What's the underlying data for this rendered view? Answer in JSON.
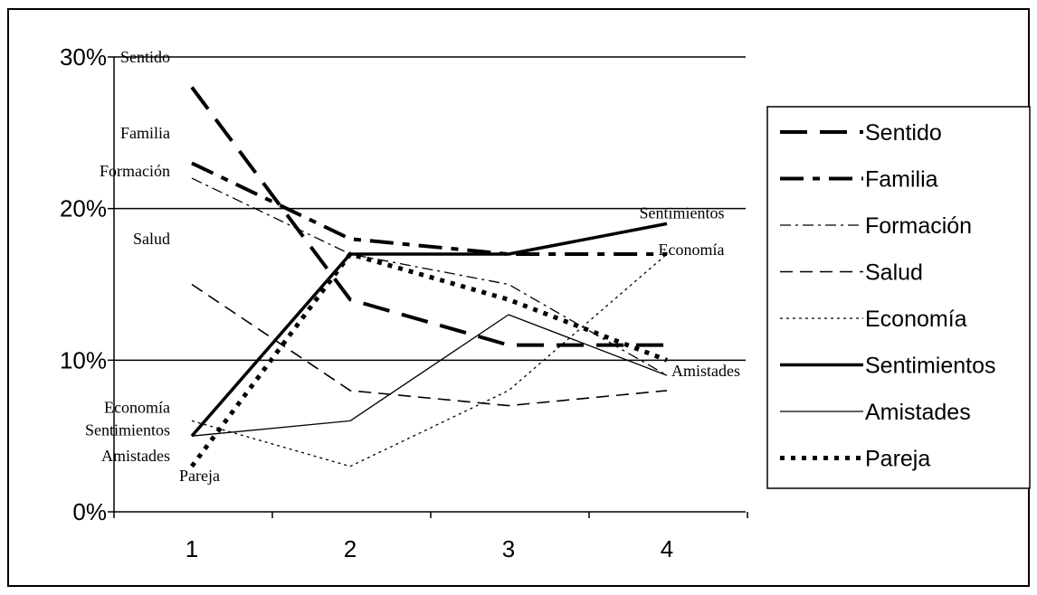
{
  "chart_data": {
    "type": "line",
    "title": "",
    "xlabel": "",
    "ylabel": "",
    "x": [
      1,
      2,
      3,
      4
    ],
    "x_tick_labels": [
      "1",
      "2",
      "3",
      "4"
    ],
    "ylim": [
      0,
      30
    ],
    "y_ticks": [
      0,
      10,
      20,
      30
    ],
    "y_tick_labels": [
      "0%",
      "10%",
      "20%",
      "30%"
    ],
    "grid": "horizontal",
    "legend_position": "right",
    "series": [
      {
        "name": "Sentido",
        "values": [
          28,
          14,
          11,
          11
        ],
        "style": "long-dash",
        "stroke": "#000000"
      },
      {
        "name": "Familia",
        "values": [
          23,
          18,
          17,
          17
        ],
        "style": "long-short-dash",
        "stroke": "#000000"
      },
      {
        "name": "Formación",
        "values": [
          22,
          17,
          15,
          9
        ],
        "style": "dash-dot",
        "stroke": "#000000"
      },
      {
        "name": "Salud",
        "values": [
          15,
          8,
          7,
          8
        ],
        "style": "dash",
        "stroke": "#000000"
      },
      {
        "name": "Economía",
        "values": [
          6,
          3,
          8,
          17
        ],
        "style": "dot",
        "stroke": "#000000"
      },
      {
        "name": "Sentimientos",
        "values": [
          5,
          17,
          17,
          19
        ],
        "style": "solid-thick",
        "stroke": "#000000"
      },
      {
        "name": "Amistades",
        "values": [
          5,
          6,
          13,
          9
        ],
        "style": "solid-thin",
        "stroke": "#000000"
      },
      {
        "name": "Pareja",
        "values": [
          3,
          17,
          14,
          10
        ],
        "style": "square-dot",
        "stroke": "#000000"
      }
    ],
    "annotations": [
      {
        "text": "Sentido",
        "x": 1,
        "y": 30,
        "anchor": "end"
      },
      {
        "text": "Familia",
        "x": 1,
        "y": 25,
        "anchor": "end"
      },
      {
        "text": "Formación",
        "x": 1,
        "y": 22.5,
        "anchor": "end"
      },
      {
        "text": "Salud",
        "x": 1,
        "y": 18,
        "anchor": "end"
      },
      {
        "text": "Economía",
        "x": 1,
        "y": 6.9,
        "anchor": "end"
      },
      {
        "text": "Sentimientos",
        "x": 1,
        "y": 5.4,
        "anchor": "end"
      },
      {
        "text": "Amistades",
        "x": 1,
        "y": 3.7,
        "anchor": "end"
      },
      {
        "text": "Pareja",
        "x": 1,
        "y": 2.4,
        "anchor": "start"
      },
      {
        "text": "Sentimientos",
        "x": 4.5,
        "y": 19.7,
        "anchor": "end"
      },
      {
        "text": "Economía",
        "x": 4.5,
        "y": 17.3,
        "anchor": "end"
      },
      {
        "text": "Amistades",
        "x": 4.6,
        "y": 9.3,
        "anchor": "end"
      }
    ]
  }
}
